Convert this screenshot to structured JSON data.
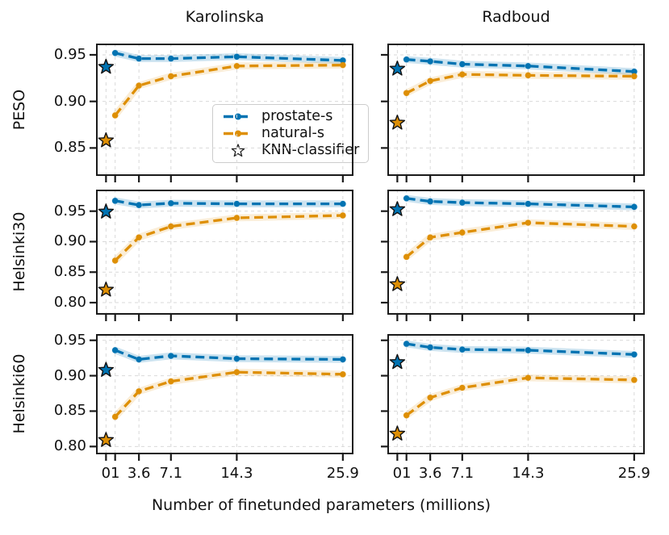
{
  "figure": {
    "xlabel": "Number of finetunded parameters (millions)"
  },
  "chart_data": {
    "type": "line",
    "xlabel": "Number of finetunded parameters (millions)",
    "columns": [
      "Karolinska",
      "Radboud"
    ],
    "x": [
      1,
      3.6,
      7.1,
      14.3,
      25.9
    ],
    "star_x": 0,
    "xticks": [
      0,
      1,
      3.6,
      7.1,
      14.3,
      25.9
    ],
    "xtick_labels": [
      "0",
      "1",
      "3.6",
      "7.1",
      "14.3",
      "25.9"
    ],
    "xlim": [
      -1.09,
      27.06
    ],
    "grid": true,
    "legend": [
      "prostate-s",
      "natural-s",
      "KNN-classifier"
    ],
    "legend_position": "lower right of top-left subplot",
    "rows": [
      {
        "label": "PESO",
        "ylim": [
          0.82,
          0.9621
        ],
        "yticks": [
          0.85,
          0.9,
          0.95
        ]
      },
      {
        "label": "Helsinki30",
        "ylim": [
          0.7802,
          0.9853
        ],
        "yticks": [
          0.8,
          0.85,
          0.9,
          0.95
        ]
      },
      {
        "label": "Helsinki60",
        "ylim": [
          0.789,
          0.9588
        ],
        "yticks": [
          0.8,
          0.85,
          0.9,
          0.95
        ]
      }
    ],
    "subplots": [
      {
        "row": "PESO",
        "column": "Karolinska",
        "prostate_s": [
          0.952,
          0.946,
          0.946,
          0.948,
          0.944
        ],
        "natural_s": [
          0.885,
          0.917,
          0.927,
          0.938,
          0.939
        ],
        "knn_prostate": 0.937,
        "knn_natural": 0.858
      },
      {
        "row": "PESO",
        "column": "Radboud",
        "prostate_s": [
          0.945,
          0.943,
          0.94,
          0.938,
          0.932
        ],
        "natural_s": [
          0.909,
          0.922,
          0.929,
          0.928,
          0.927
        ],
        "knn_prostate": 0.935,
        "knn_natural": 0.877
      },
      {
        "row": "Helsinki30",
        "column": "Karolinska",
        "prostate_s": [
          0.967,
          0.96,
          0.963,
          0.962,
          0.962
        ],
        "natural_s": [
          0.869,
          0.907,
          0.925,
          0.939,
          0.943
        ],
        "knn_prostate": 0.949,
        "knn_natural": 0.821
      },
      {
        "row": "Helsinki30",
        "column": "Radboud",
        "prostate_s": [
          0.971,
          0.966,
          0.964,
          0.962,
          0.957
        ],
        "natural_s": [
          0.875,
          0.907,
          0.915,
          0.931,
          0.925
        ],
        "knn_prostate": 0.953,
        "knn_natural": 0.83
      },
      {
        "row": "Helsinki60",
        "column": "Karolinska",
        "prostate_s": [
          0.936,
          0.923,
          0.928,
          0.924,
          0.923
        ],
        "natural_s": [
          0.842,
          0.878,
          0.892,
          0.905,
          0.902
        ],
        "knn_prostate": 0.908,
        "knn_natural": 0.809
      },
      {
        "row": "Helsinki60",
        "column": "Radboud",
        "prostate_s": [
          0.945,
          0.94,
          0.937,
          0.936,
          0.93
        ],
        "natural_s": [
          0.844,
          0.869,
          0.883,
          0.897,
          0.894
        ],
        "knn_prostate": 0.919,
        "knn_natural": 0.818
      }
    ],
    "colors": {
      "prostate_s": "#0173b2",
      "natural_s": "#de8f05",
      "prostate_band": "rgba(1,115,178,0.20)",
      "natural_band": "rgba(222,143,5,0.16)",
      "star_edge": "#111111",
      "knn_legend_star_fill": "#ffffff",
      "grid": "#d9d9d9",
      "spine": "#1a1a1a"
    }
  }
}
